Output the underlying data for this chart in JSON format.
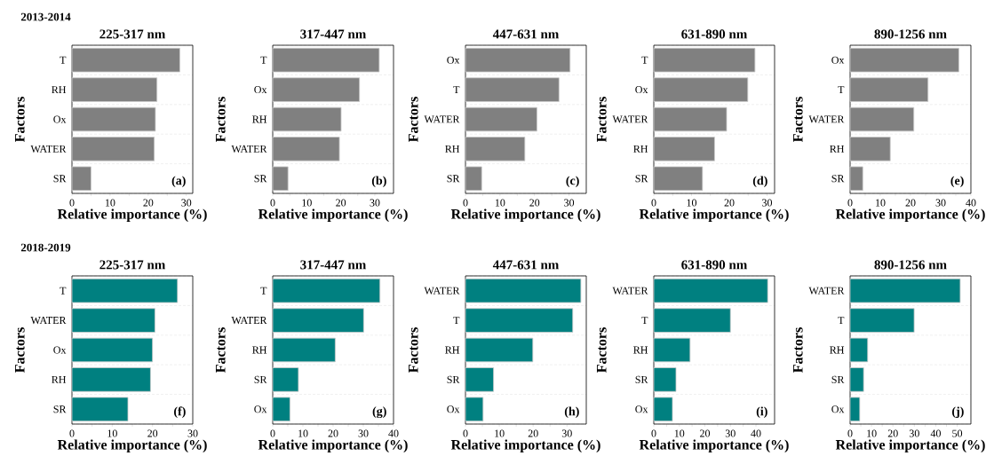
{
  "chart_data": [
    {
      "type": "bar",
      "orientation": "horizontal",
      "subtitle": "2013-2014",
      "title": "225-317 nm",
      "xlabel": "Relative importance (%)",
      "ylabel": "Factors",
      "categories": [
        "T",
        "RH",
        "Ox",
        "WATER",
        "SR"
      ],
      "values": [
        28.3,
        22.3,
        21.9,
        21.6,
        5.0
      ],
      "color": "#808080",
      "xlim": [
        0,
        31.7
      ],
      "xticks": [
        0,
        10,
        20,
        30
      ],
      "grid": "y",
      "annotations": [
        "(a)"
      ]
    },
    {
      "type": "bar",
      "orientation": "horizontal",
      "title": "317-447 nm",
      "xlabel": "Relative importance (%)",
      "ylabel": "Factors",
      "categories": [
        "T",
        "Ox",
        "RH",
        "WATER",
        "SR"
      ],
      "values": [
        31.3,
        25.5,
        20.1,
        19.6,
        4.5
      ],
      "color": "#808080",
      "xlim": [
        0,
        35.5
      ],
      "xticks": [
        0,
        10,
        20,
        30
      ],
      "grid": "y",
      "annotations": [
        "(b)"
      ]
    },
    {
      "type": "bar",
      "orientation": "horizontal",
      "title": "447-631 nm",
      "xlabel": "Relative importance (%)",
      "ylabel": "Factors",
      "categories": [
        "Ox",
        "T",
        "WATER",
        "RH",
        "SR"
      ],
      "values": [
        30.3,
        27.1,
        20.7,
        17.2,
        4.7
      ],
      "color": "#808080",
      "xlim": [
        0,
        35
      ],
      "xticks": [
        0,
        10,
        20,
        30
      ],
      "grid": "y",
      "annotations": [
        "(c)"
      ]
    },
    {
      "type": "bar",
      "orientation": "horizontal",
      "title": "631-890 nm",
      "xlabel": "Relative importance (%)",
      "ylabel": "Factors",
      "categories": [
        "T",
        "Ox",
        "WATER",
        "RH",
        "SR"
      ],
      "values": [
        26.8,
        24.9,
        19.3,
        16.1,
        12.9
      ],
      "color": "#808080",
      "xlim": [
        0,
        32
      ],
      "xticks": [
        0,
        10,
        20,
        30
      ],
      "grid": "y",
      "annotations": [
        "(d)"
      ]
    },
    {
      "type": "bar",
      "orientation": "horizontal",
      "title": "890-1256 nm",
      "xlabel": "Relative importance (%)",
      "ylabel": "Factors",
      "categories": [
        "Ox",
        "T",
        "WATER",
        "RH",
        "SR"
      ],
      "values": [
        36.0,
        25.8,
        21.1,
        13.3,
        4.2
      ],
      "color": "#808080",
      "xlim": [
        0,
        40
      ],
      "xticks": [
        0,
        10,
        20,
        30,
        40
      ],
      "grid": "y",
      "annotations": [
        "(e)"
      ]
    },
    {
      "type": "bar",
      "orientation": "horizontal",
      "subtitle": "2018-2019",
      "title": "225-317 nm",
      "xlabel": "Relative importance (%)",
      "ylabel": "Factors",
      "categories": [
        "T",
        "WATER",
        "Ox",
        "RH",
        "SR"
      ],
      "values": [
        26.2,
        20.6,
        20.0,
        19.5,
        13.9
      ],
      "color": "#008080",
      "xlim": [
        0,
        30
      ],
      "xticks": [
        0,
        10,
        20,
        30
      ],
      "grid": "y",
      "annotations": [
        "(f)"
      ]
    },
    {
      "type": "bar",
      "orientation": "horizontal",
      "title": "317-447 nm",
      "xlabel": "Relative importance (%)",
      "ylabel": "Factors",
      "categories": [
        "T",
        "WATER",
        "RH",
        "SR",
        "Ox"
      ],
      "values": [
        35.5,
        30.1,
        20.7,
        8.5,
        5.7
      ],
      "color": "#008080",
      "xlim": [
        0,
        40
      ],
      "xticks": [
        0,
        10,
        20,
        30,
        40
      ],
      "grid": "y",
      "annotations": [
        "(g)"
      ]
    },
    {
      "type": "bar",
      "orientation": "horizontal",
      "title": "447-631 nm",
      "xlabel": "Relative importance (%)",
      "ylabel": "Factors",
      "categories": [
        "WATER",
        "T",
        "RH",
        "SR",
        "Ox"
      ],
      "values": [
        34.1,
        31.7,
        19.9,
        8.3,
        5.2
      ],
      "color": "#008080",
      "xlim": [
        0,
        35.7
      ],
      "xticks": [
        0,
        10,
        20,
        30
      ],
      "grid": "y",
      "annotations": [
        "(h)"
      ]
    },
    {
      "type": "bar",
      "orientation": "horizontal",
      "title": "631-890 nm",
      "xlabel": "Relative importance (%)",
      "ylabel": "Factors",
      "categories": [
        "WATER",
        "T",
        "RH",
        "SR",
        "Ox"
      ],
      "values": [
        44.6,
        30.0,
        14.2,
        8.7,
        7.3
      ],
      "color": "#008080",
      "xlim": [
        0,
        47.3
      ],
      "xticks": [
        0,
        10,
        20,
        30,
        40
      ],
      "grid": "y",
      "annotations": [
        "(i)"
      ]
    },
    {
      "type": "bar",
      "orientation": "horizontal",
      "title": "890-1256 nm",
      "xlabel": "Relative importance (%)",
      "ylabel": "Factors",
      "categories": [
        "WATER",
        "T",
        "RH",
        "SR",
        "Ox"
      ],
      "values": [
        51.4,
        29.9,
        8.2,
        6.3,
        4.5
      ],
      "color": "#008080",
      "xlim": [
        0,
        56.4
      ],
      "xticks": [
        0,
        10,
        20,
        30,
        40,
        50
      ],
      "grid": "y",
      "annotations": [
        "(j)"
      ]
    }
  ]
}
